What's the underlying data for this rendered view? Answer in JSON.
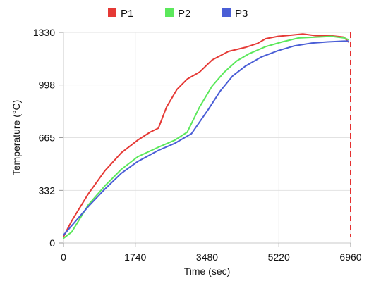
{
  "chart_data": {
    "type": "line",
    "title": "",
    "xlabel": "Time (sec)",
    "ylabel": "Temperature (°C)",
    "xlim": [
      0,
      6960
    ],
    "ylim": [
      0,
      1330
    ],
    "xticks": [
      0,
      1740,
      3480,
      5220,
      6960
    ],
    "yticks": [
      0,
      332,
      665,
      998,
      1330
    ],
    "grid": true,
    "legend_position": "top",
    "marker_line": {
      "x": 6960,
      "color": "#e53030",
      "style": "dashed"
    },
    "series": [
      {
        "name": "P1",
        "color": "#e53935",
        "points": [
          [
            0,
            40
          ],
          [
            200,
            140
          ],
          [
            600,
            310
          ],
          [
            1000,
            455
          ],
          [
            1400,
            570
          ],
          [
            1800,
            650
          ],
          [
            2100,
            700
          ],
          [
            2300,
            725
          ],
          [
            2500,
            860
          ],
          [
            2750,
            970
          ],
          [
            3000,
            1035
          ],
          [
            3300,
            1080
          ],
          [
            3600,
            1155
          ],
          [
            4000,
            1210
          ],
          [
            4400,
            1235
          ],
          [
            4700,
            1260
          ],
          [
            4900,
            1290
          ],
          [
            5200,
            1305
          ],
          [
            5500,
            1312
          ],
          [
            5800,
            1320
          ],
          [
            6100,
            1310
          ],
          [
            6500,
            1308
          ],
          [
            6800,
            1300
          ],
          [
            6900,
            1270
          ]
        ]
      },
      {
        "name": "P2",
        "color": "#5be85b",
        "points": [
          [
            0,
            30
          ],
          [
            200,
            70
          ],
          [
            600,
            240
          ],
          [
            1000,
            360
          ],
          [
            1400,
            465
          ],
          [
            1800,
            545
          ],
          [
            2300,
            605
          ],
          [
            2700,
            650
          ],
          [
            3000,
            700
          ],
          [
            3300,
            860
          ],
          [
            3600,
            990
          ],
          [
            3900,
            1080
          ],
          [
            4200,
            1150
          ],
          [
            4500,
            1195
          ],
          [
            4900,
            1240
          ],
          [
            5300,
            1270
          ],
          [
            5700,
            1295
          ],
          [
            6100,
            1300
          ],
          [
            6500,
            1305
          ],
          [
            6800,
            1295
          ],
          [
            6900,
            1285
          ]
        ]
      },
      {
        "name": "P3",
        "color": "#4a5ed6",
        "points": [
          [
            0,
            50
          ],
          [
            200,
            110
          ],
          [
            600,
            230
          ],
          [
            1000,
            340
          ],
          [
            1400,
            440
          ],
          [
            1800,
            515
          ],
          [
            2300,
            585
          ],
          [
            2700,
            630
          ],
          [
            3100,
            690
          ],
          [
            3500,
            840
          ],
          [
            3800,
            960
          ],
          [
            4100,
            1055
          ],
          [
            4400,
            1115
          ],
          [
            4800,
            1175
          ],
          [
            5200,
            1215
          ],
          [
            5600,
            1245
          ],
          [
            6000,
            1262
          ],
          [
            6400,
            1270
          ],
          [
            6800,
            1275
          ],
          [
            6900,
            1275
          ]
        ]
      }
    ]
  }
}
